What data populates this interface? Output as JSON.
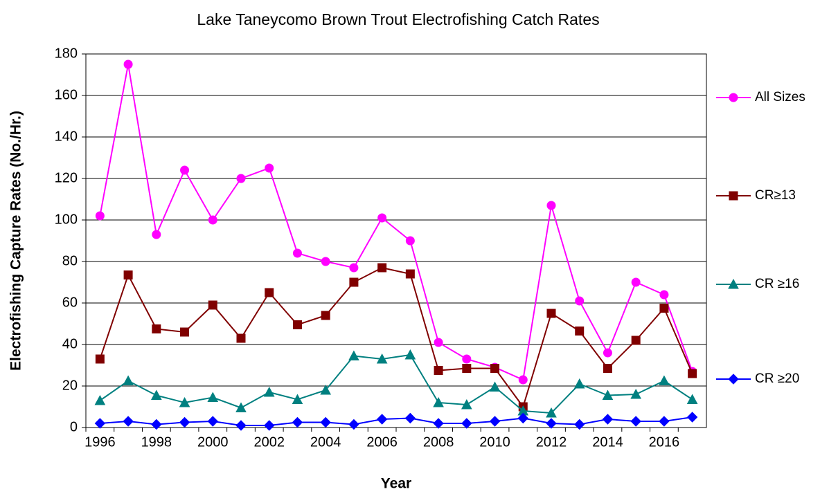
{
  "chart_data": {
    "type": "line",
    "title": "Lake Taneycomo Brown Trout Electrofishing Catch Rates",
    "x_label": "Year",
    "y_label": "Electrofishing  Capture Rates (No./Hr.)",
    "categories": [
      "1996",
      null,
      "1998",
      null,
      "2000",
      null,
      "2002",
      null,
      "2004",
      null,
      "2006",
      null,
      "2008",
      null,
      "2010",
      null,
      "2012",
      null,
      "2014",
      null,
      "2016",
      null
    ],
    "series": [
      {
        "name": "All Sizes",
        "color": "#ff00ff",
        "marker": "circle",
        "values": [
          102,
          175,
          93,
          124,
          100,
          120,
          125,
          84,
          80,
          77,
          101,
          90,
          41,
          33,
          29,
          23,
          107,
          61,
          36,
          70,
          64,
          27
        ]
      },
      {
        "name": "CR≥13",
        "color": "#800000",
        "marker": "square",
        "values": [
          33,
          73.5,
          47.5,
          46,
          59,
          43,
          65,
          49.5,
          54,
          70,
          77,
          74,
          27.5,
          28.5,
          28.5,
          10,
          55,
          46.5,
          28.5,
          42,
          57.5,
          26
        ]
      },
      {
        "name": "CR ≥16",
        "color": "#008080",
        "marker": "triangle",
        "values": [
          13,
          22.5,
          15.5,
          12,
          14.5,
          9.5,
          17,
          13.5,
          18,
          34.5,
          33,
          35,
          12,
          11,
          19.5,
          8,
          7,
          21,
          15.5,
          16,
          22.5,
          13.5
        ]
      },
      {
        "name": "CR ≥20",
        "color": "#0000ff",
        "marker": "diamond",
        "values": [
          2,
          3,
          1.5,
          2.5,
          3,
          1,
          1,
          2.5,
          2.5,
          1.5,
          4,
          4.5,
          2,
          2,
          3,
          4.5,
          2,
          1.5,
          4,
          3,
          3,
          5
        ]
      }
    ],
    "ylim": [
      0,
      180
    ],
    "yticks": [
      0,
      20,
      40,
      60,
      80,
      100,
      120,
      140,
      160,
      180
    ],
    "grid": true,
    "legend": "right"
  }
}
